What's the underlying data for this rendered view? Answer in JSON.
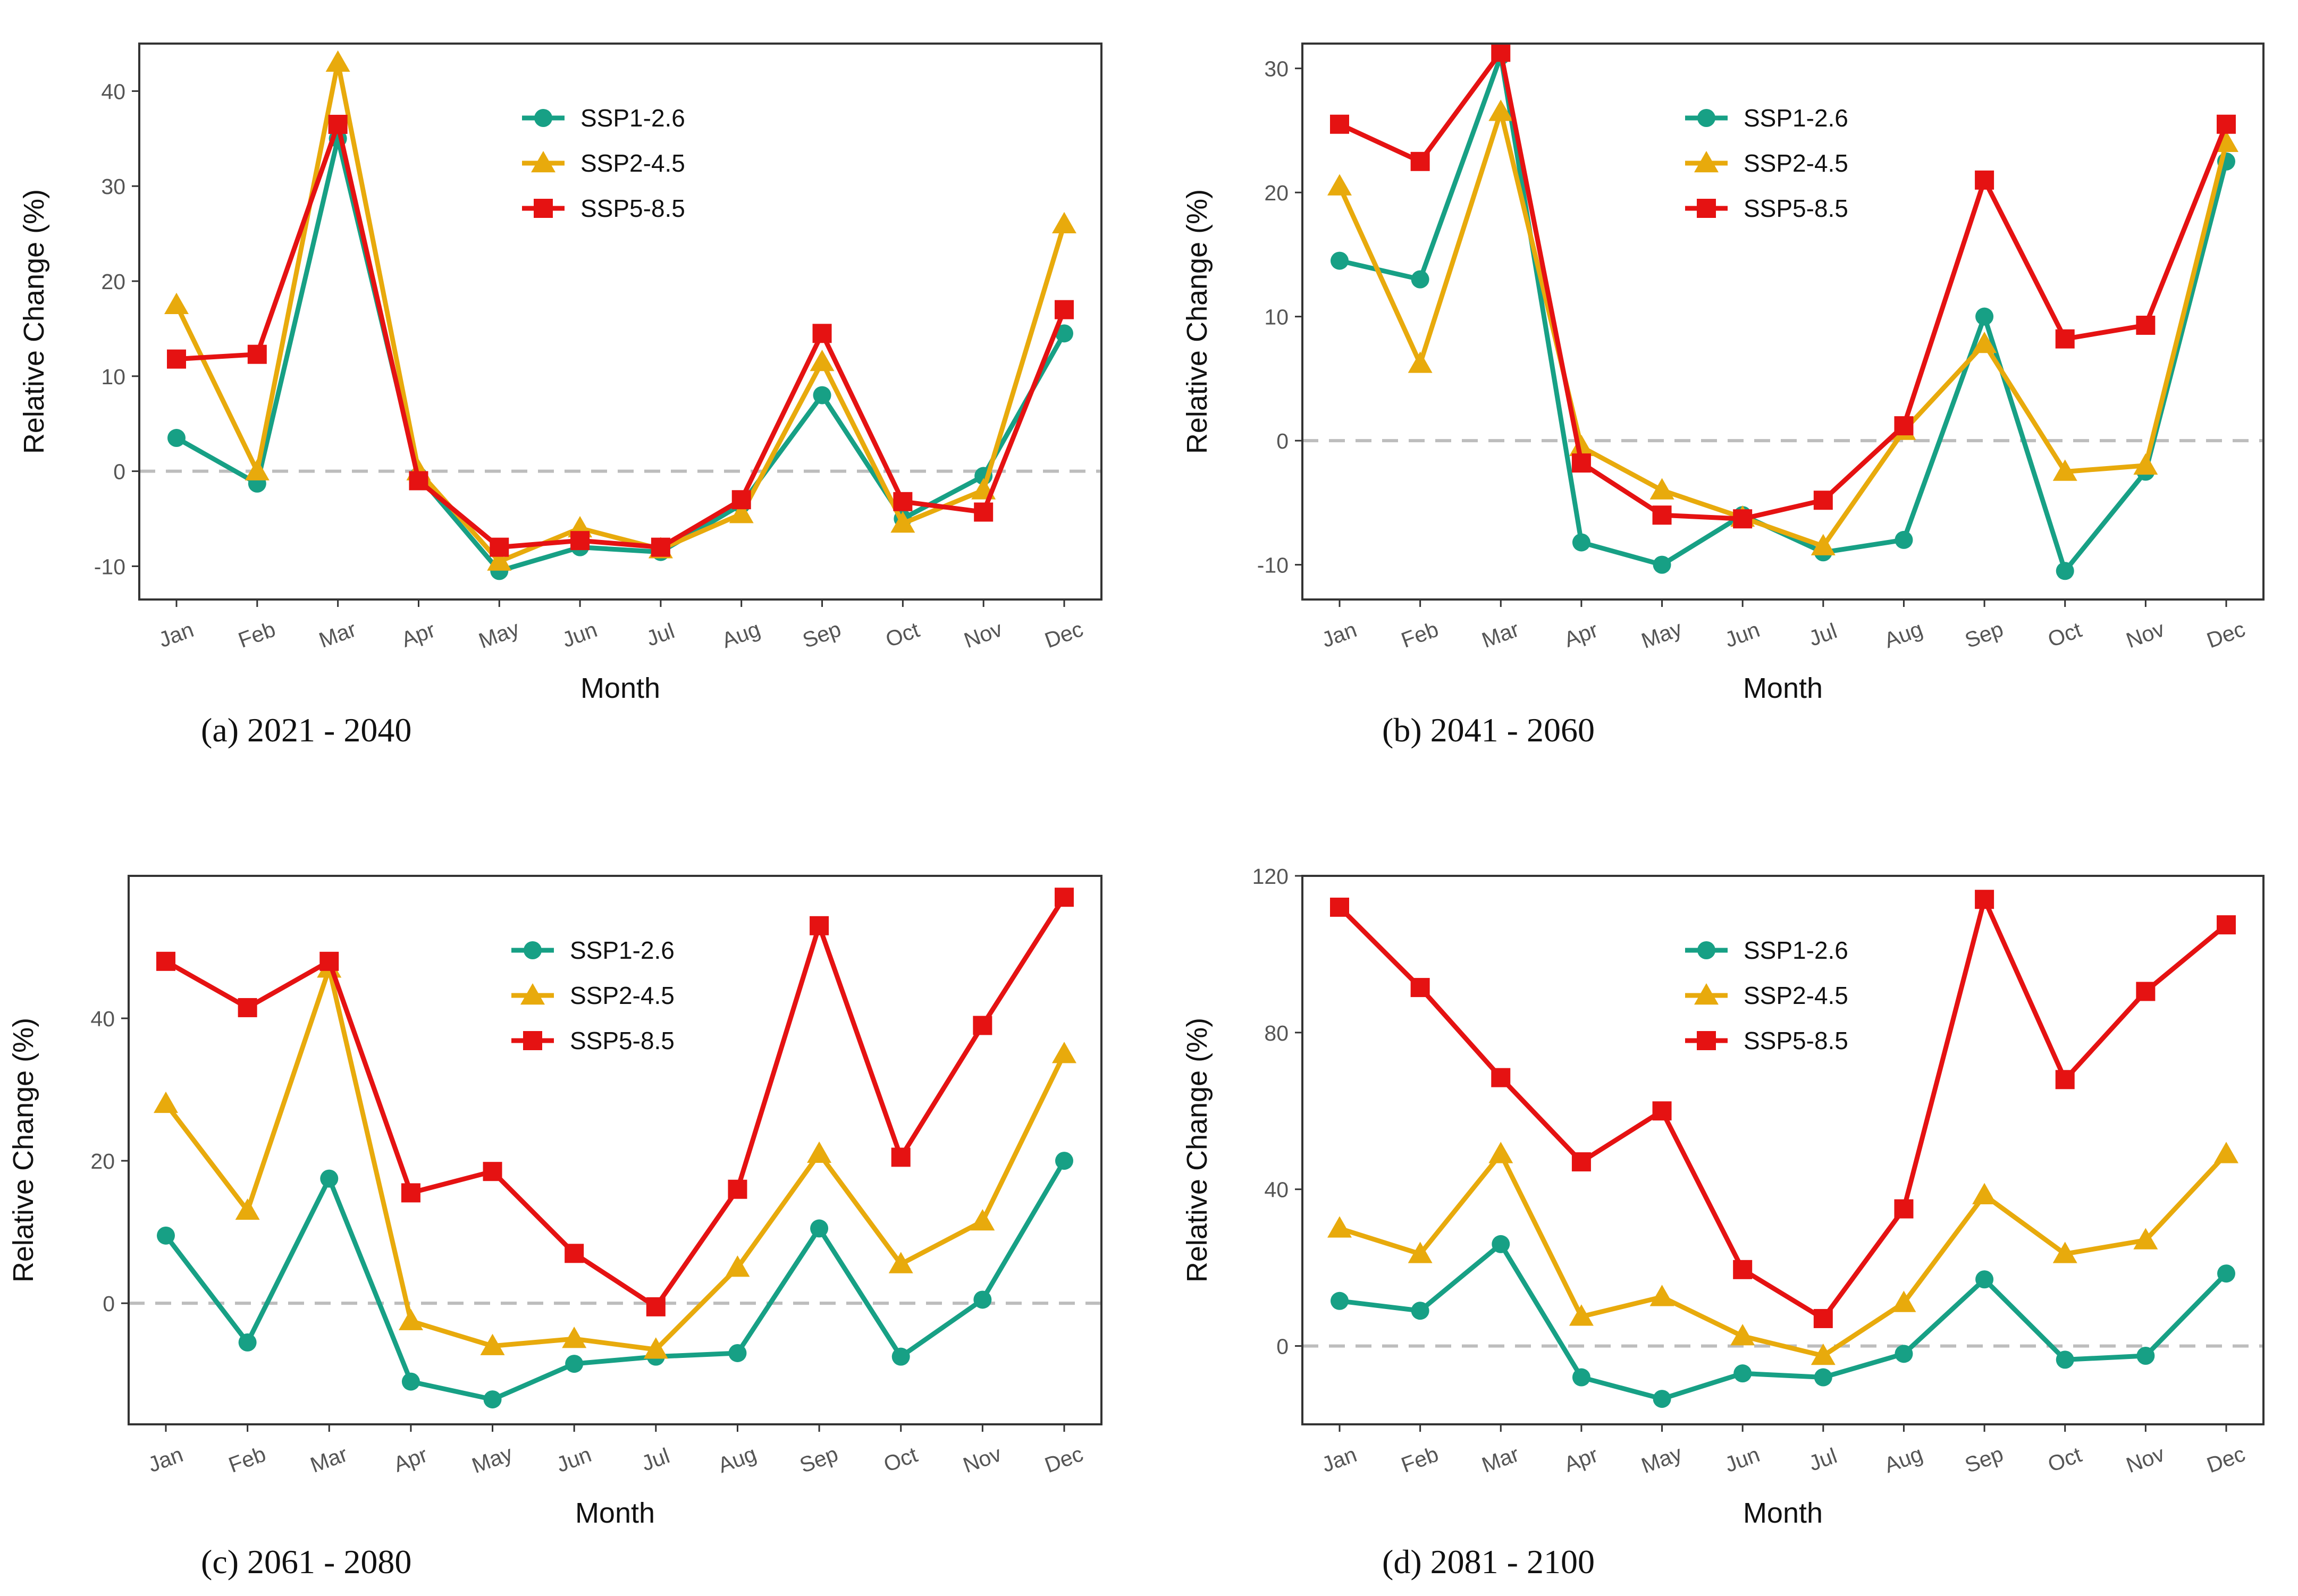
{
  "colors": {
    "ssp126": "#17A085",
    "ssp245": "#E8AA0C",
    "ssp585": "#E51212",
    "zero_line": "#BDBDBD"
  },
  "chart_data": [
    {
      "type": "line",
      "caption": "(a) 2021 - 2040",
      "xlabel": "Month",
      "ylabel": "Relative Change (%)",
      "categories": [
        "Jan",
        "Feb",
        "Mar",
        "Apr",
        "May",
        "Jun",
        "Jul",
        "Aug",
        "Sep",
        "Oct",
        "Nov",
        "Dec"
      ],
      "ylim": [
        -13.5,
        45
      ],
      "yticks": [
        -10,
        0,
        10,
        20,
        30,
        40
      ],
      "series": [
        {
          "name": "SSP1-2.6",
          "marker": "circle",
          "values": [
            3.5,
            -1.3,
            35,
            -0.5,
            -10.5,
            -8,
            -8.5,
            -3.5,
            8,
            -5,
            -0.5,
            14.5
          ]
        },
        {
          "name": "SSP2-4.5",
          "marker": "triangle",
          "values": [
            17.5,
            0,
            43,
            0,
            -9.5,
            -6,
            -8.2,
            -4.5,
            11.5,
            -5.5,
            -2,
            26
          ]
        },
        {
          "name": "SSP5-8.5",
          "marker": "square",
          "values": [
            11.8,
            12.3,
            36.5,
            -1,
            -8,
            -7.3,
            -8,
            -3,
            14.5,
            -3.2,
            -4.3,
            17
          ]
        }
      ]
    },
    {
      "type": "line",
      "caption": "(b) 2041 - 2060",
      "xlabel": "Month",
      "ylabel": "Relative Change (%)",
      "categories": [
        "Jan",
        "Feb",
        "Mar",
        "Apr",
        "May",
        "Jun",
        "Jul",
        "Aug",
        "Sep",
        "Oct",
        "Nov",
        "Dec"
      ],
      "ylim": [
        -12.8,
        32
      ],
      "yticks": [
        -10,
        0,
        10,
        20,
        30
      ],
      "series": [
        {
          "name": "SSP1-2.6",
          "marker": "circle",
          "values": [
            14.5,
            13,
            31,
            -8.2,
            -10,
            -6,
            -9,
            -8,
            10,
            -10.5,
            -2.5,
            22.5
          ]
        },
        {
          "name": "SSP2-4.5",
          "marker": "triangle",
          "values": [
            20.5,
            6.2,
            26.5,
            -0.5,
            -4,
            -6.2,
            -8.5,
            0.8,
            7.8,
            -2.5,
            -2,
            24
          ]
        },
        {
          "name": "SSP5-8.5",
          "marker": "square",
          "values": [
            25.5,
            22.5,
            31.3,
            -1.8,
            -6,
            -6.3,
            -4.8,
            1.2,
            21,
            8.2,
            9.3,
            25.5
          ]
        }
      ]
    },
    {
      "type": "line",
      "caption": "(c) 2061 - 2080",
      "xlabel": "Month",
      "ylabel": "Relative Change (%)",
      "categories": [
        "Jan",
        "Feb",
        "Mar",
        "Apr",
        "May",
        "Jun",
        "Jul",
        "Aug",
        "Sep",
        "Oct",
        "Nov",
        "Dec"
      ],
      "ylim": [
        -17,
        60
      ],
      "yticks": [
        0,
        20,
        40
      ],
      "series": [
        {
          "name": "SSP1-2.6",
          "marker": "circle",
          "values": [
            9.5,
            -5.5,
            17.5,
            -11,
            -13.5,
            -8.5,
            -7.5,
            -7,
            10.5,
            -7.5,
            0.5,
            20
          ]
        },
        {
          "name": "SSP2-4.5",
          "marker": "triangle",
          "values": [
            28,
            13,
            47,
            -2.5,
            -6,
            -5,
            -6.5,
            5,
            21,
            5.5,
            11.5,
            35
          ]
        },
        {
          "name": "SSP5-8.5",
          "marker": "square",
          "values": [
            48,
            41.5,
            48,
            15.5,
            18.5,
            7,
            -0.5,
            16,
            53,
            20.5,
            39,
            57
          ]
        }
      ]
    },
    {
      "type": "line",
      "caption": "(d) 2081 - 2100",
      "xlabel": "Month",
      "ylabel": "Relative Change (%)",
      "categories": [
        "Jan",
        "Feb",
        "Mar",
        "Apr",
        "May",
        "Jun",
        "Jul",
        "Aug",
        "Sep",
        "Oct",
        "Nov",
        "Dec"
      ],
      "ylim": [
        -20,
        120
      ],
      "yticks": [
        0,
        40,
        80,
        120
      ],
      "series": [
        {
          "name": "SSP1-2.6",
          "marker": "circle",
          "values": [
            11.5,
            9,
            26,
            -8,
            -13.5,
            -7,
            -8,
            -2,
            17,
            -3.5,
            -2.5,
            18.5
          ]
        },
        {
          "name": "SSP2-4.5",
          "marker": "triangle",
          "values": [
            30,
            23.5,
            49,
            7.5,
            12.5,
            2.5,
            -2.5,
            11,
            38.5,
            23.5,
            27,
            49
          ]
        },
        {
          "name": "SSP5-8.5",
          "marker": "square",
          "values": [
            112,
            91.5,
            68.5,
            47,
            60,
            19.5,
            7,
            35,
            114,
            68,
            90.5,
            107.5
          ]
        }
      ]
    }
  ]
}
